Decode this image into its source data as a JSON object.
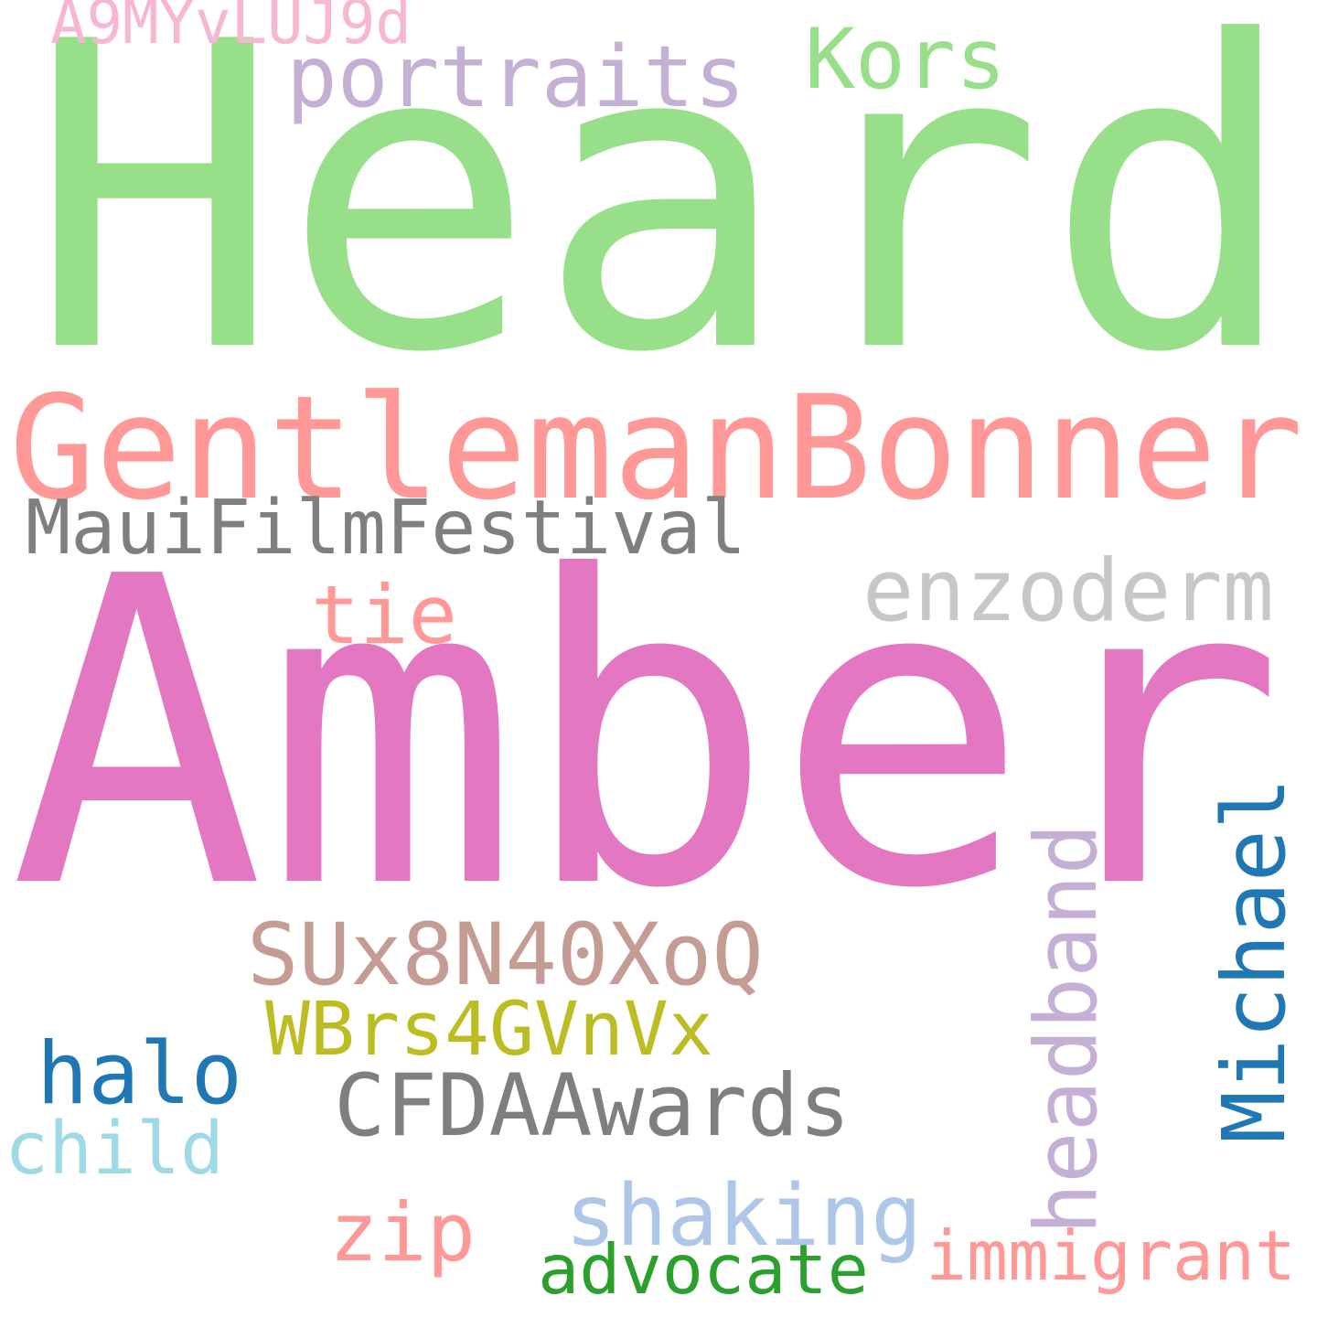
{
  "words": [
    {
      "id": "heard",
      "text": "Heard",
      "color": "#98df8a",
      "vertical": false
    },
    {
      "id": "amber",
      "text": "Amber",
      "color": "#e377c2",
      "vertical": false
    },
    {
      "id": "gentlemanbonner",
      "text": "GentlemanBonner",
      "color": "#ff9896",
      "vertical": false
    },
    {
      "id": "mauifilmfestival",
      "text": "MauiFilmFestival",
      "color": "#7f7f7f",
      "vertical": false
    },
    {
      "id": "enzoderm",
      "text": "enzoderm",
      "color": "#c7c7c7",
      "vertical": false
    },
    {
      "id": "tie",
      "text": "tie",
      "color": "#ff9896",
      "vertical": false
    },
    {
      "id": "portraits",
      "text": "portraits",
      "color": "#c5b0d5",
      "vertical": false
    },
    {
      "id": "kors",
      "text": "Kors",
      "color": "#98df8a",
      "vertical": false
    },
    {
      "id": "a9myvluj9d",
      "text": "A9MYvLUJ9d",
      "color": "#f7b6d2",
      "vertical": false
    },
    {
      "id": "sux8n40xoq",
      "text": "SUx8N40XoQ",
      "color": "#c49c94",
      "vertical": false
    },
    {
      "id": "wbrs4gvnvx",
      "text": "WBrs4GVnVx",
      "color": "#bcbd22",
      "vertical": false
    },
    {
      "id": "halo",
      "text": "halo",
      "color": "#1f77b4",
      "vertical": false
    },
    {
      "id": "cfdaawards",
      "text": "CFDAAwards",
      "color": "#7f7f7f",
      "vertical": false
    },
    {
      "id": "child",
      "text": "child",
      "color": "#9edae5",
      "vertical": false
    },
    {
      "id": "shaking",
      "text": "shaking",
      "color": "#aec7e8",
      "vertical": false
    },
    {
      "id": "zip",
      "text": "zip",
      "color": "#ff9896",
      "vertical": false
    },
    {
      "id": "advocate",
      "text": "advocate",
      "color": "#2ca02c",
      "vertical": false
    },
    {
      "id": "immigrant",
      "text": "immigrant",
      "color": "#ff9896",
      "vertical": false
    },
    {
      "id": "headband",
      "text": "headband",
      "color": "#c5b0d5",
      "vertical": true
    },
    {
      "id": "michael",
      "text": "Michael",
      "color": "#1f77b4",
      "vertical": true
    }
  ]
}
